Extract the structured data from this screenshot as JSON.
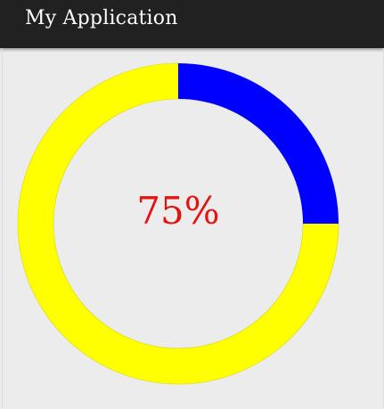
{
  "app_bar": {
    "title": "My Application"
  },
  "progress_ring": {
    "label": "75%",
    "remaining_fraction": 0.75,
    "done_fraction": 0.25,
    "colors": {
      "remaining": "#ffff00",
      "done": "#0000ff",
      "label": "#e3140f"
    }
  },
  "theme": {
    "app_bar_bg": "#212121",
    "background": "#ececec"
  }
}
